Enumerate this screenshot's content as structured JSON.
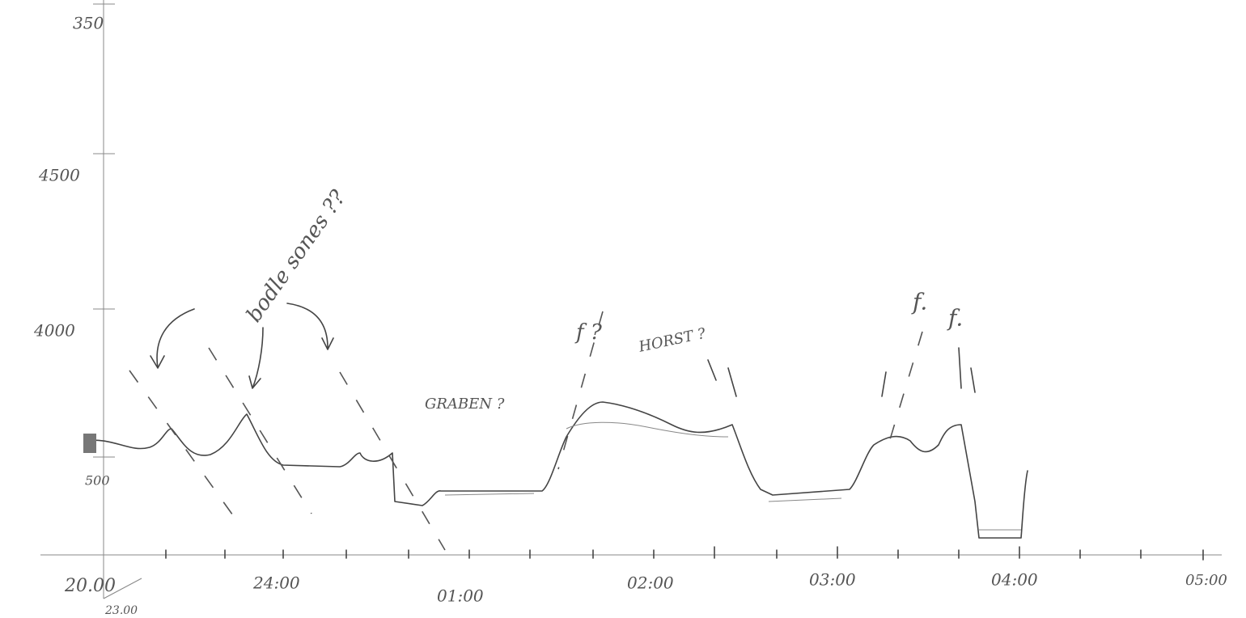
{
  "y_axis": {
    "labels": [
      "350",
      "4500",
      "4000",
      "500"
    ]
  },
  "x_axis": {
    "labels": [
      "20.00",
      "24:00",
      "01:00",
      "02:00",
      "03:00",
      "04:00",
      "05:00"
    ],
    "sub_label": "23.00"
  },
  "annotations": {
    "border_zones": "bodle sones ??",
    "graben": "GRABEN ?",
    "fault_left": "f ?",
    "horst": "HORST ?",
    "fault_a": "f.",
    "fault_b": "f."
  }
}
